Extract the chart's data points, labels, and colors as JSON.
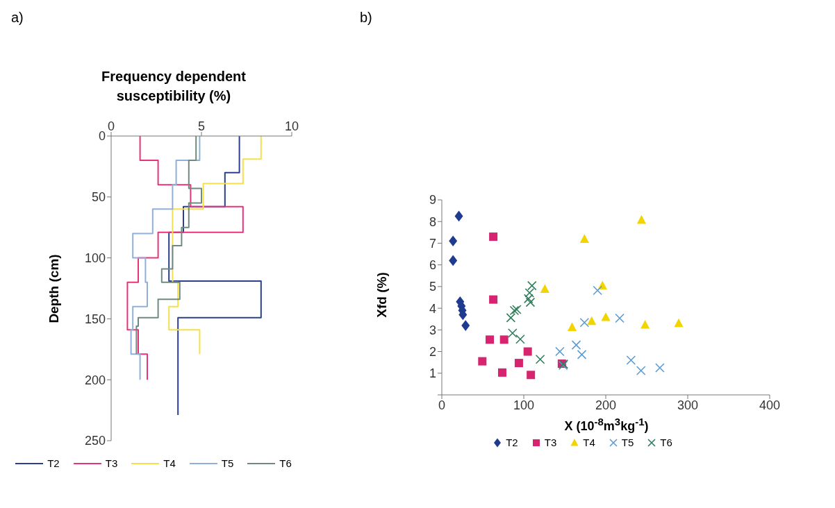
{
  "chart_data": [
    {
      "type": "line",
      "xlabel": "Frequency dependent susceptibility (%)",
      "ylabel": "Depth (cm)",
      "annotations": [
        "a)"
      ],
      "xlim": [
        0,
        10
      ],
      "xticks": [
        0,
        5,
        10
      ],
      "ylim": [
        250,
        0
      ],
      "yticks": [
        0,
        50,
        100,
        150,
        200,
        250
      ],
      "grid": false,
      "legend": "bottom",
      "marker": "none",
      "line_style": "solid",
      "series": [
        {
          "name": "T2",
          "color": "#2a3f8f",
          "x": [
            7.1,
            7.1,
            6.3,
            6.3,
            4.0,
            4.0,
            3.2,
            3.2,
            8.3,
            8.3,
            3.7,
            3.7
          ],
          "values": [
            0,
            30,
            30,
            58,
            58,
            79,
            79,
            119,
            119,
            149,
            149,
            229
          ]
        },
        {
          "name": "T3",
          "color": "#e8337a",
          "x": [
            1.6,
            1.6,
            2.6,
            2.6,
            4.4,
            4.4,
            7.3,
            7.3,
            2.6,
            2.6,
            1.5,
            1.5,
            0.9,
            0.9,
            1.5,
            1.5,
            2.0,
            2.0
          ],
          "values": [
            0,
            20,
            20,
            40,
            40,
            58,
            58,
            79,
            79,
            100,
            100,
            120,
            120,
            159,
            159,
            179,
            179,
            200
          ]
        },
        {
          "name": "T4",
          "color": "#f5e04a",
          "x": [
            8.3,
            8.3,
            7.3,
            7.3,
            5.1,
            5.1,
            3.4,
            3.4,
            3.7,
            3.7,
            3.2,
            3.2,
            4.9,
            4.9
          ],
          "values": [
            0,
            19,
            19,
            39,
            39,
            60,
            60,
            120,
            120,
            140,
            140,
            159,
            159,
            179
          ]
        },
        {
          "name": "T5",
          "color": "#8fb0d8",
          "x": [
            4.9,
            4.9,
            3.6,
            3.6,
            3.4,
            3.4,
            2.3,
            2.3,
            1.2,
            1.2,
            1.9,
            1.9,
            2.0,
            2.0,
            1.2,
            1.2,
            1.1,
            1.1,
            1.6,
            1.6
          ],
          "values": [
            0,
            20,
            20,
            40,
            40,
            60,
            60,
            80,
            80,
            100,
            100,
            120,
            120,
            140,
            140,
            159,
            159,
            179,
            179,
            200
          ]
        },
        {
          "name": "T6",
          "color": "#6e8a80",
          "x": [
            4.7,
            4.7,
            4.3,
            4.3,
            5.0,
            5.0,
            4.3,
            4.3,
            3.9,
            3.9,
            3.4,
            3.4,
            2.8,
            2.8,
            3.8,
            3.8,
            2.6,
            2.6,
            1.5,
            1.5,
            1.4,
            1.4
          ],
          "values": [
            0,
            20,
            20,
            43,
            43,
            55,
            55,
            75,
            75,
            90,
            90,
            109,
            109,
            120,
            120,
            134,
            134,
            149,
            149,
            156,
            156,
            179
          ]
        }
      ]
    },
    {
      "type": "scatter",
      "xlabel": "X (10$^{-8}$m$^{3}$kg$^{-1}$)",
      "ylabel": "Xfd (%)",
      "annotations": [
        "b)"
      ],
      "xlim": [
        0,
        400
      ],
      "xticks": [
        0,
        100,
        200,
        300,
        400
      ],
      "ylim": [
        0,
        9
      ],
      "yticks": [
        {
          "value": 0,
          "label": null
        },
        1,
        2,
        3,
        4,
        5,
        6,
        7,
        8,
        9
      ],
      "grid": false,
      "legend": "bottom",
      "series": [
        {
          "name": "T2",
          "color": "#1f3b8f",
          "marker": "diamond",
          "x": [
            20.8,
            13.7,
            13.7,
            22.3,
            24,
            25,
            25.7,
            29
          ],
          "values": [
            8.25,
            7.1,
            6.2,
            4.3,
            4.1,
            3.9,
            3.7,
            3.2
          ]
        },
        {
          "name": "T3",
          "color": "#d6246e",
          "marker": "square",
          "x": [
            62.8,
            62.8,
            58.5,
            76,
            49.4,
            104.8,
            94,
            73.7,
            108.6,
            146.5
          ],
          "values": [
            7.3,
            4.4,
            2.55,
            2.55,
            1.55,
            2.0,
            1.47,
            1.03,
            0.92,
            1.44
          ]
        },
        {
          "name": "T4",
          "color": "#f2d500",
          "marker": "triangle",
          "x": [
            125.7,
            174,
            158.9,
            182.8,
            196,
            200,
            243.6,
            248,
            289
          ],
          "values": [
            4.88,
            7.19,
            3.12,
            3.4,
            5.04,
            3.58,
            8.07,
            3.23,
            3.3
          ]
        },
        {
          "name": "T5",
          "color": "#5b9bd5",
          "marker": "cross",
          "x": [
            144,
            148,
            164,
            170.8,
            174,
            190,
            217,
            230.8,
            243,
            266
          ],
          "values": [
            2.0,
            1.36,
            2.3,
            1.86,
            3.34,
            4.82,
            3.54,
            1.6,
            1.12,
            1.25
          ]
        },
        {
          "name": "T6",
          "color": "#2e7d5b",
          "marker": "cross",
          "x": [
            84.2,
            88.5,
            91.4,
            86.3,
            95.7,
            105.7,
            107,
            110,
            108,
            120,
            148.5
          ],
          "values": [
            3.56,
            3.89,
            3.94,
            2.85,
            2.57,
            4.44,
            4.71,
            5.04,
            4.27,
            1.64,
            1.42
          ]
        }
      ]
    }
  ]
}
